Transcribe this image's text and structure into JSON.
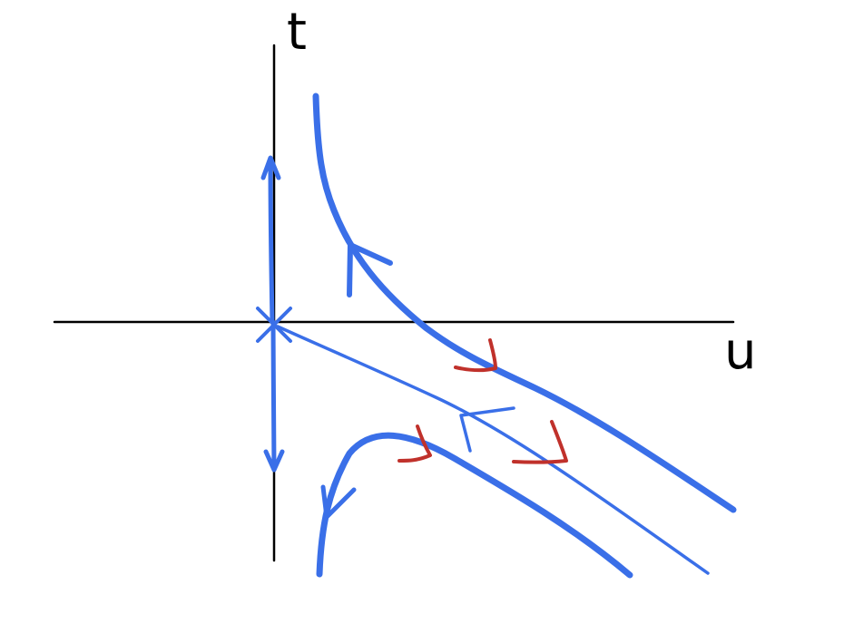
{
  "diagram": {
    "axis_vertical_label": "t",
    "axis_horizontal_label": "u"
  },
  "colors": {
    "axis": "#000000",
    "trajectory": "#3A6FE8",
    "arrow_accent": "#C0312B",
    "background": "#FFFFFF"
  }
}
